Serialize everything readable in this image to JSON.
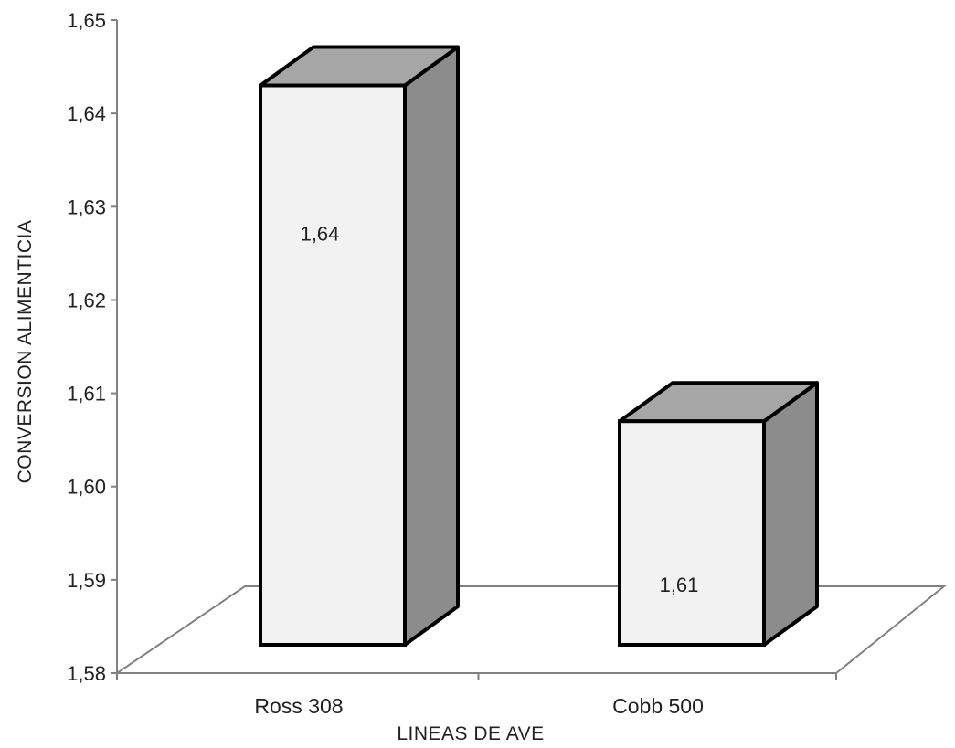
{
  "chart_data": {
    "type": "bar",
    "style": "3d-column",
    "title": "",
    "xlabel": "LINEAS DE AVE",
    "ylabel": "CONVERSION ALIMENTICIA",
    "categories": [
      "Ross 308",
      "Cobb 500"
    ],
    "values": [
      1.643,
      1.607
    ],
    "data_labels": [
      "1,64",
      "1,61"
    ],
    "ylim": [
      1.58,
      1.65
    ],
    "y_ticks": [
      1.58,
      1.59,
      1.6,
      1.61,
      1.62,
      1.63,
      1.64,
      1.65
    ],
    "y_tick_labels": [
      "1,58",
      "1,59",
      "1,60",
      "1,61",
      "1,62",
      "1,63",
      "1,64",
      "1,65"
    ],
    "grid": false,
    "legend": "none",
    "colors": {
      "bar_front": "#f2f2f2",
      "bar_side": "#8c8c8c",
      "bar_top": "#a6a6a6",
      "outline": "#000000",
      "axis": "#808080"
    }
  }
}
